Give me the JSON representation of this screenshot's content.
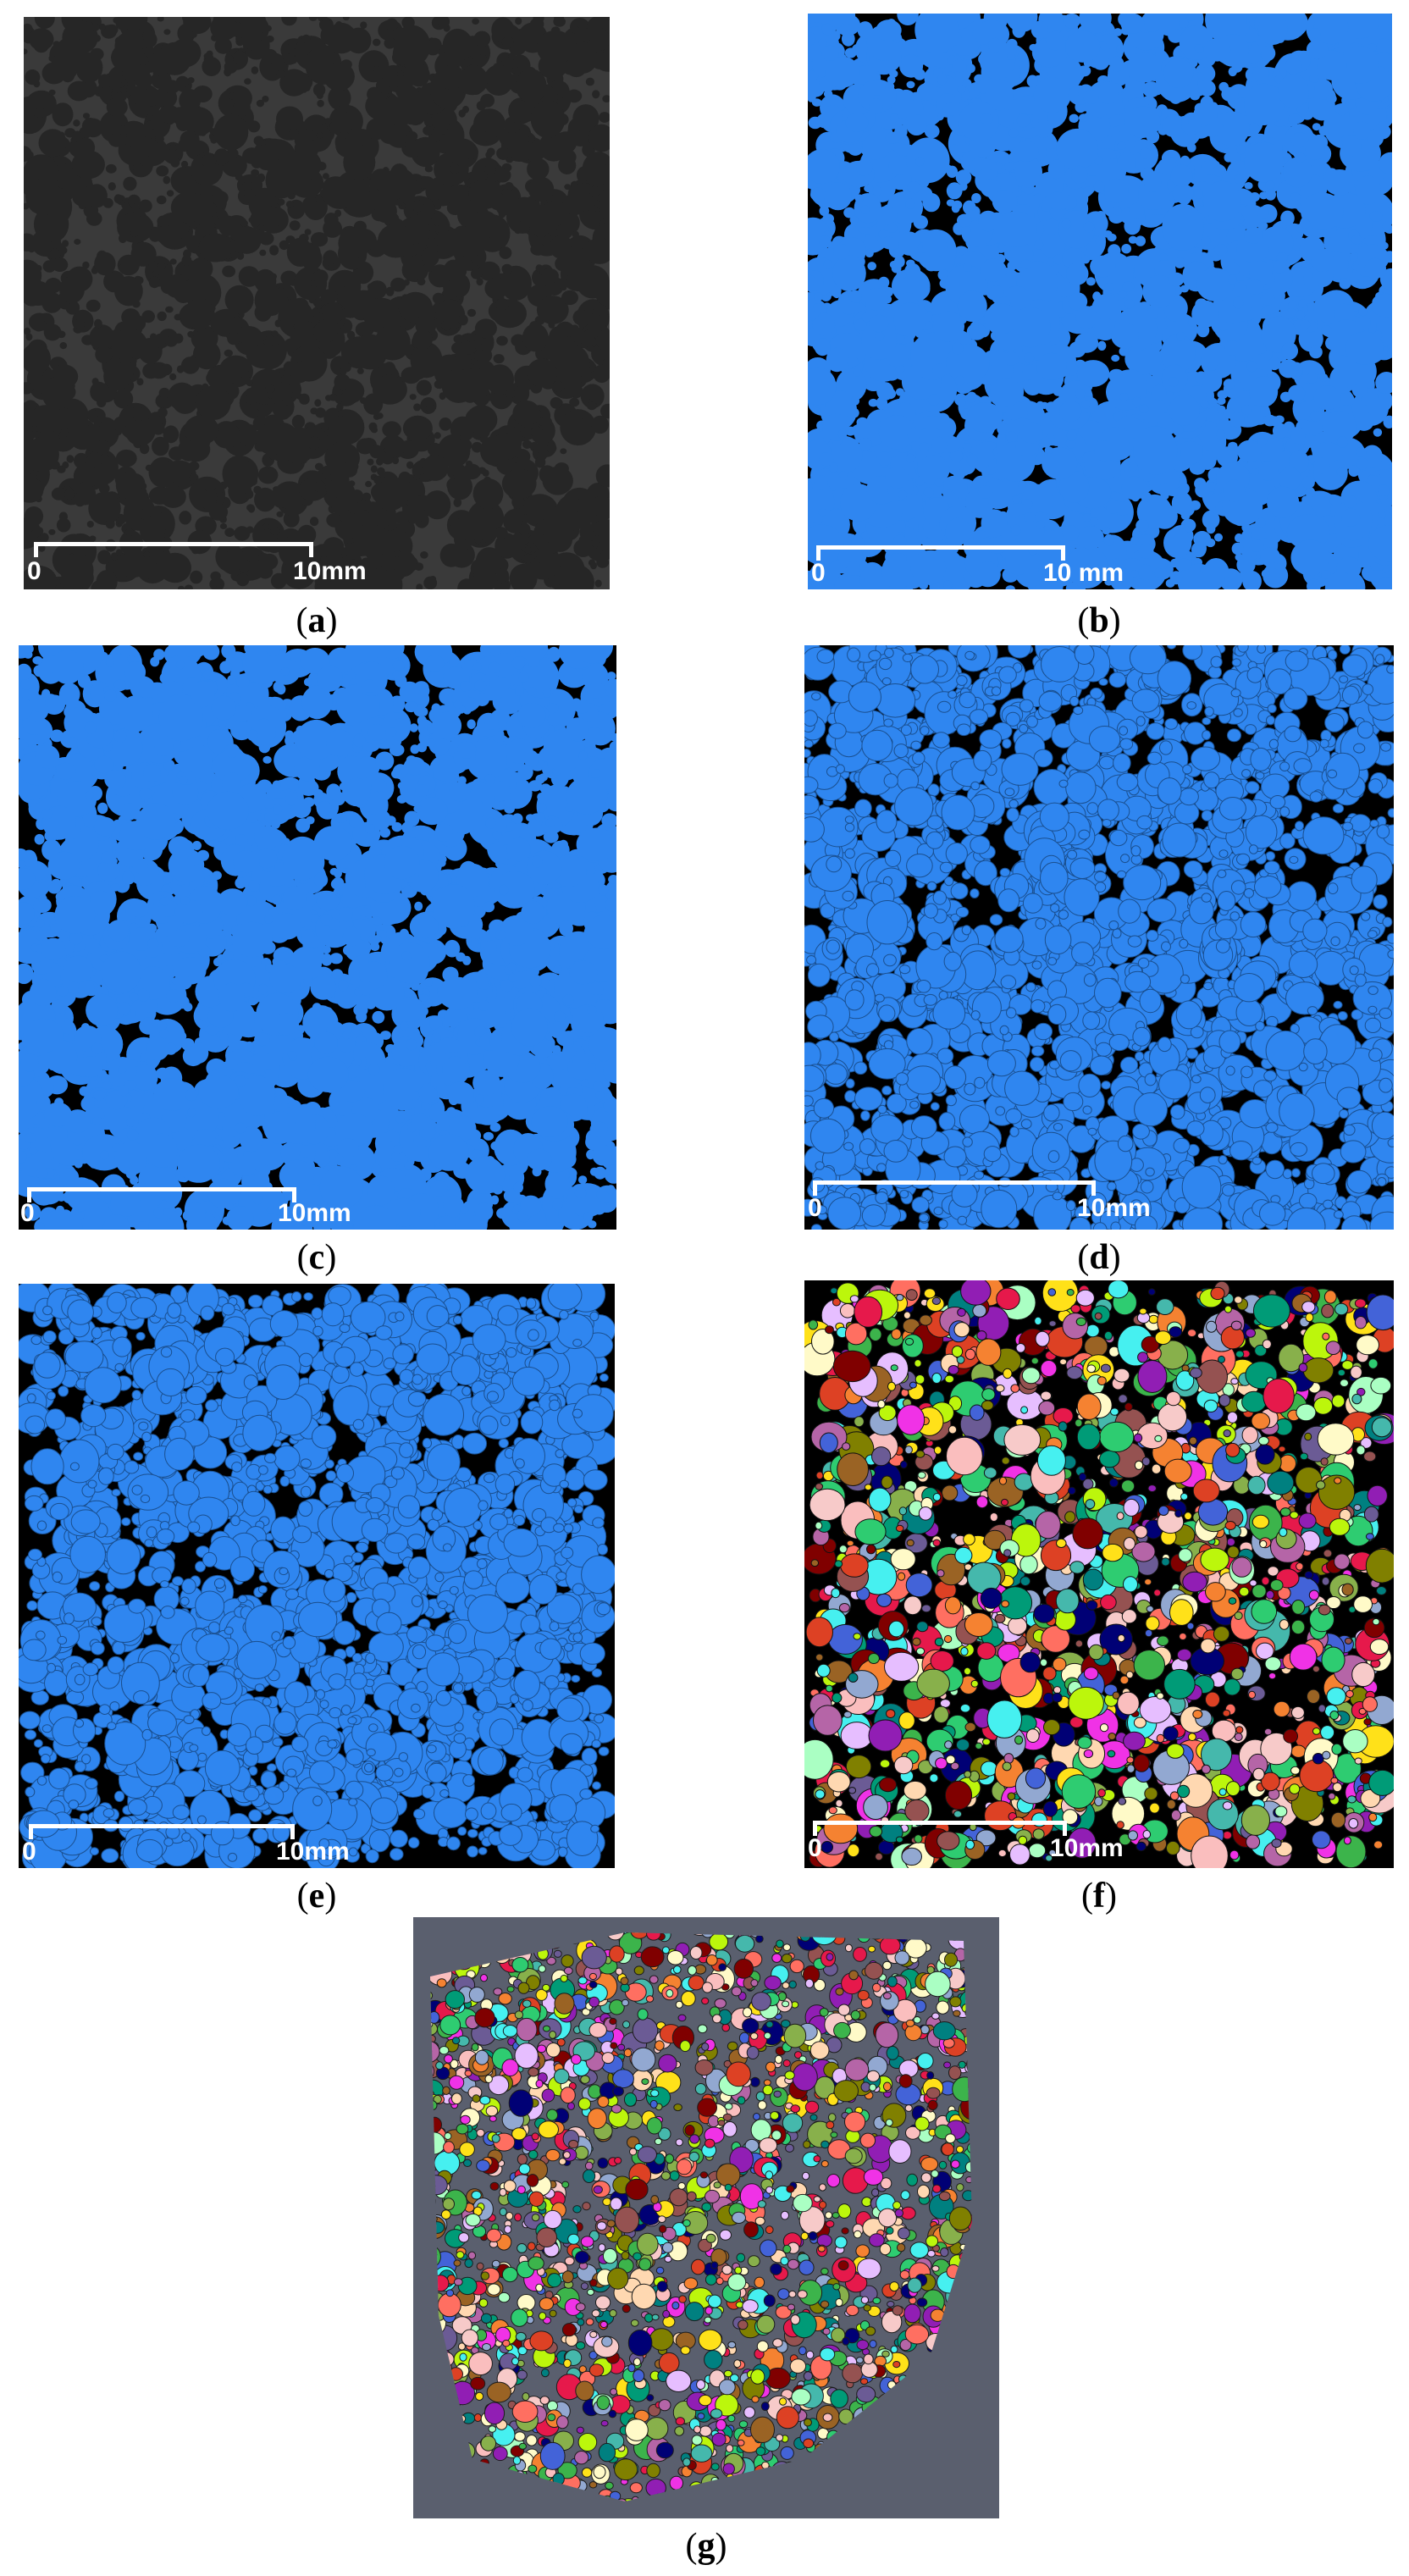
{
  "figure": {
    "panels": [
      {
        "id": "a",
        "caption_open": "(",
        "caption_letter": "a",
        "caption_close": ")",
        "style": "grayscale-ct",
        "scale_start": "0",
        "scale_end": "10mm"
      },
      {
        "id": "b",
        "caption_open": "(",
        "caption_letter": "b",
        "caption_close": ")",
        "style": "blue-threshold",
        "scale_start": "0",
        "scale_end": "10 mm"
      },
      {
        "id": "c",
        "caption_open": "(",
        "caption_letter": "c",
        "caption_close": ")",
        "style": "blue-threshold",
        "scale_start": "0",
        "scale_end": "10mm"
      },
      {
        "id": "d",
        "caption_open": "(",
        "caption_letter": "d",
        "caption_close": ")",
        "style": "blue-separated",
        "scale_start": "0",
        "scale_end": "10mm"
      },
      {
        "id": "e",
        "caption_open": "(",
        "caption_letter": "e",
        "caption_close": ")",
        "style": "blue-separated",
        "scale_start": "0",
        "scale_end": "10mm"
      },
      {
        "id": "f",
        "caption_open": "(",
        "caption_letter": "f",
        "caption_close": ")",
        "style": "labeled-particles",
        "scale_start": "0",
        "scale_end": "10mm"
      },
      {
        "id": "g",
        "caption_open": "(",
        "caption_letter": "g",
        "caption_close": ")",
        "style": "3d-volume-render",
        "scale_start": "",
        "scale_end": ""
      }
    ]
  },
  "colors": {
    "ct_background": "#3a3a3a",
    "ct_particle": "#262626",
    "threshold_blue": "#2f86f0",
    "pore_black": "#000000",
    "render_background": "#5a5f6e",
    "scale_bar": "#ffffff",
    "label_palette": [
      "#e6194b",
      "#3cb44b",
      "#ffe119",
      "#4363d8",
      "#f58231",
      "#911eb4",
      "#46f0f0",
      "#f032e6",
      "#bcf60c",
      "#fabebe",
      "#008080",
      "#e6beff",
      "#9a6324",
      "#fffac8",
      "#800000",
      "#aaffc3",
      "#808000",
      "#ffd8b1",
      "#000075",
      "#2ecc71",
      "#ff6f61",
      "#6b5b95",
      "#88b04b",
      "#f7cac9",
      "#92a8d1",
      "#955251",
      "#b565a7",
      "#009b77",
      "#dd4124",
      "#45b8ac"
    ]
  }
}
